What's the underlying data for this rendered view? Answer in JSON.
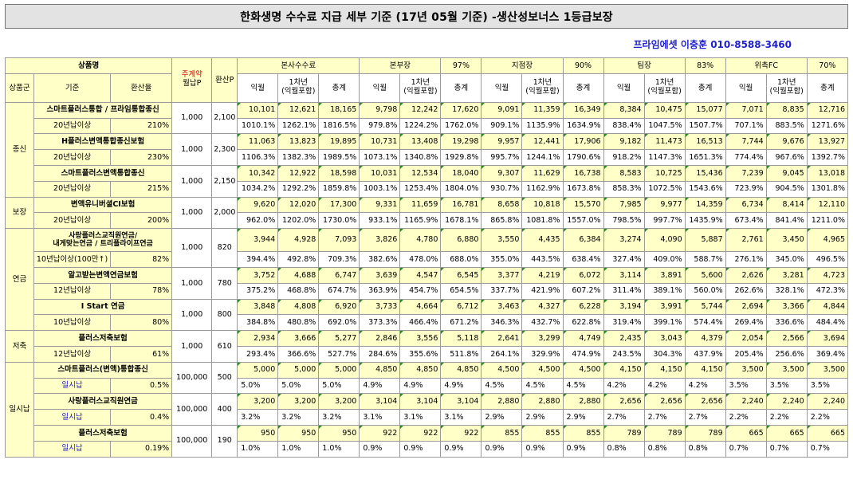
{
  "title": "한화생명 수수료 지급 세부 기준 (17년 05월 기준) -생산성보너스 1등급보장",
  "contact": "프라임에셋 이충훈 010-8588-3460",
  "header": {
    "product_name": "상품명",
    "main_contract_line1": "주계약",
    "main_contract_line2": "월납P",
    "converted_p": "환산P",
    "group": "상품군",
    "criteria": "기준",
    "conversion_rate": "환산율",
    "sections": [
      {
        "name": "본사수수료",
        "pct": ""
      },
      {
        "name": "본부장",
        "pct": "97%"
      },
      {
        "name": "지점장",
        "pct": "90%"
      },
      {
        "name": "팀장",
        "pct": "83%"
      },
      {
        "name": "위촉FC",
        "pct": "70%"
      }
    ],
    "col_month": "익월",
    "col_year1_a": "1차년",
    "col_year1_b": "(익월포함)",
    "col_total": "총계"
  },
  "groups": [
    {
      "name": "종신",
      "products": [
        {
          "name": "스마트플러스통합 / 프라임통합종신",
          "criteria": "20년납이상",
          "rate": "210%",
          "monthly_p": "1,000",
          "converted_p": "2,100",
          "values": [
            "10,101",
            "12,621",
            "18,165",
            "9,798",
            "12,242",
            "17,620",
            "9,091",
            "11,359",
            "16,349",
            "8,384",
            "10,475",
            "15,077",
            "7,071",
            "8,835",
            "12,716"
          ],
          "percents": [
            "1010.1%",
            "1262.1%",
            "1816.5%",
            "979.8%",
            "1224.2%",
            "1762.0%",
            "909.1%",
            "1135.9%",
            "1634.9%",
            "838.4%",
            "1047.5%",
            "1507.7%",
            "707.1%",
            "883.5%",
            "1271.6%"
          ]
        },
        {
          "name": "H플러스변액통합종신보험",
          "criteria": "20년납이상",
          "rate": "230%",
          "monthly_p": "1,000",
          "converted_p": "2,300",
          "values": [
            "11,063",
            "13,823",
            "19,895",
            "10,731",
            "13,408",
            "19,298",
            "9,957",
            "12,441",
            "17,906",
            "9,182",
            "11,473",
            "16,513",
            "7,744",
            "9,676",
            "13,927"
          ],
          "percents": [
            "1106.3%",
            "1382.3%",
            "1989.5%",
            "1073.1%",
            "1340.8%",
            "1929.8%",
            "995.7%",
            "1244.1%",
            "1790.6%",
            "918.2%",
            "1147.3%",
            "1651.3%",
            "774.4%",
            "967.6%",
            "1392.7%"
          ]
        },
        {
          "name": "스마트플러스변액통합종신",
          "criteria": "20년납이상",
          "rate": "215%",
          "monthly_p": "1,000",
          "converted_p": "2,150",
          "values": [
            "10,342",
            "12,922",
            "18,598",
            "10,031",
            "12,534",
            "18,040",
            "9,307",
            "11,629",
            "16,738",
            "8,583",
            "10,725",
            "15,436",
            "7,239",
            "9,045",
            "13,018"
          ],
          "percents": [
            "1034.2%",
            "1292.2%",
            "1859.8%",
            "1003.1%",
            "1253.4%",
            "1804.0%",
            "930.7%",
            "1162.9%",
            "1673.8%",
            "858.3%",
            "1072.5%",
            "1543.6%",
            "723.9%",
            "904.5%",
            "1301.8%"
          ]
        }
      ]
    },
    {
      "name": "보장",
      "products": [
        {
          "name": "변액유니버셜CI보험",
          "criteria": "20년납이상",
          "rate": "200%",
          "monthly_p": "1,000",
          "converted_p": "2,000",
          "values": [
            "9,620",
            "12,020",
            "17,300",
            "9,331",
            "11,659",
            "16,781",
            "8,658",
            "10,818",
            "15,570",
            "7,985",
            "9,977",
            "14,359",
            "6,734",
            "8,414",
            "12,110"
          ],
          "percents": [
            "962.0%",
            "1202.0%",
            "1730.0%",
            "933.1%",
            "1165.9%",
            "1678.1%",
            "865.8%",
            "1081.8%",
            "1557.0%",
            "798.5%",
            "997.7%",
            "1435.9%",
            "673.4%",
            "841.4%",
            "1211.0%"
          ]
        }
      ]
    },
    {
      "name": "연금",
      "products": [
        {
          "name_line1": "사랑플러스교직원연금/",
          "name_line2": "내게맞는연금 / 트리플라이프연금",
          "criteria": "10년납이상(100만↑)",
          "rate": "82%",
          "monthly_p": "1,000",
          "converted_p": "820",
          "values": [
            "3,944",
            "4,928",
            "7,093",
            "3,826",
            "4,780",
            "6,880",
            "3,550",
            "4,435",
            "6,384",
            "3,274",
            "4,090",
            "5,887",
            "2,761",
            "3,450",
            "4,965"
          ],
          "percents": [
            "394.4%",
            "492.8%",
            "709.3%",
            "382.6%",
            "478.0%",
            "688.0%",
            "355.0%",
            "443.5%",
            "638.4%",
            "327.4%",
            "409.0%",
            "588.7%",
            "276.1%",
            "345.0%",
            "496.5%"
          ]
        },
        {
          "name": "알고받는변액연금보험",
          "criteria": "12년납이상",
          "rate": "78%",
          "monthly_p": "1,000",
          "converted_p": "780",
          "values": [
            "3,752",
            "4,688",
            "6,747",
            "3,639",
            "4,547",
            "6,545",
            "3,377",
            "4,219",
            "6,072",
            "3,114",
            "3,891",
            "5,600",
            "2,626",
            "3,281",
            "4,723"
          ],
          "percents": [
            "375.2%",
            "468.8%",
            "674.7%",
            "363.9%",
            "454.7%",
            "654.5%",
            "337.7%",
            "421.9%",
            "607.2%",
            "311.4%",
            "389.1%",
            "560.0%",
            "262.6%",
            "328.1%",
            "472.3%"
          ]
        },
        {
          "name": "I Start 연금",
          "criteria": "10년납이상",
          "rate": "80%",
          "monthly_p": "1,000",
          "converted_p": "800",
          "values": [
            "3,848",
            "4,808",
            "6,920",
            "3,733",
            "4,664",
            "6,712",
            "3,463",
            "4,327",
            "6,228",
            "3,194",
            "3,991",
            "5,744",
            "2,694",
            "3,366",
            "4,844"
          ],
          "percents": [
            "384.8%",
            "480.8%",
            "692.0%",
            "373.3%",
            "466.4%",
            "671.2%",
            "346.3%",
            "432.7%",
            "622.8%",
            "319.4%",
            "399.1%",
            "574.4%",
            "269.4%",
            "336.6%",
            "484.4%"
          ]
        }
      ]
    },
    {
      "name": "저축",
      "products": [
        {
          "name": "플러스저축보험",
          "criteria": "12년납이상",
          "rate": "61%",
          "monthly_p": "1,000",
          "converted_p": "610",
          "values": [
            "2,934",
            "3,666",
            "5,277",
            "2,846",
            "3,556",
            "5,118",
            "2,641",
            "3,299",
            "4,749",
            "2,435",
            "3,043",
            "4,379",
            "2,054",
            "2,566",
            "3,694"
          ],
          "percents": [
            "293.4%",
            "366.6%",
            "527.7%",
            "284.6%",
            "355.6%",
            "511.8%",
            "264.1%",
            "329.9%",
            "474.9%",
            "243.5%",
            "304.3%",
            "437.9%",
            "205.4%",
            "256.6%",
            "369.4%"
          ]
        }
      ]
    },
    {
      "name": "일시납",
      "products": [
        {
          "name": "스마트플러스(변액)통합종신",
          "criteria": "일시납",
          "rate": "0.5%",
          "monthly_p": "100,000",
          "converted_p": "500",
          "values": [
            "5,000",
            "5,000",
            "5,000",
            "4,850",
            "4,850",
            "4,850",
            "4,500",
            "4,500",
            "4,500",
            "4,150",
            "4,150",
            "4,150",
            "3,500",
            "3,500",
            "3,500"
          ],
          "percents": [
            "5.0%",
            "5.0%",
            "5.0%",
            "4.9%",
            "4.9%",
            "4.9%",
            "4.5%",
            "4.5%",
            "4.5%",
            "4.2%",
            "4.2%",
            "4.2%",
            "3.5%",
            "3.5%",
            "3.5%"
          ]
        },
        {
          "name": "사랑플러스교직원연금",
          "criteria": "일시납",
          "rate": "0.4%",
          "monthly_p": "100,000",
          "converted_p": "400",
          "values": [
            "3,200",
            "3,200",
            "3,200",
            "3,104",
            "3,104",
            "3,104",
            "2,880",
            "2,880",
            "2,880",
            "2,656",
            "2,656",
            "2,656",
            "2,240",
            "2,240",
            "2,240"
          ],
          "percents": [
            "3.2%",
            "3.2%",
            "3.2%",
            "3.1%",
            "3.1%",
            "3.1%",
            "2.9%",
            "2.9%",
            "2.9%",
            "2.7%",
            "2.7%",
            "2.7%",
            "2.2%",
            "2.2%",
            "2.2%"
          ]
        },
        {
          "name": "플러스저축보험",
          "criteria": "일시납",
          "rate": "0.19%",
          "monthly_p": "100,000",
          "converted_p": "190",
          "values": [
            "950",
            "950",
            "950",
            "922",
            "922",
            "922",
            "855",
            "855",
            "855",
            "789",
            "789",
            "789",
            "665",
            "665",
            "665"
          ],
          "percents": [
            "1.0%",
            "1.0%",
            "1.0%",
            "0.9%",
            "0.9%",
            "0.9%",
            "0.9%",
            "0.9%",
            "0.9%",
            "0.8%",
            "0.8%",
            "0.8%",
            "0.7%",
            "0.7%",
            "0.7%"
          ]
        }
      ]
    }
  ]
}
